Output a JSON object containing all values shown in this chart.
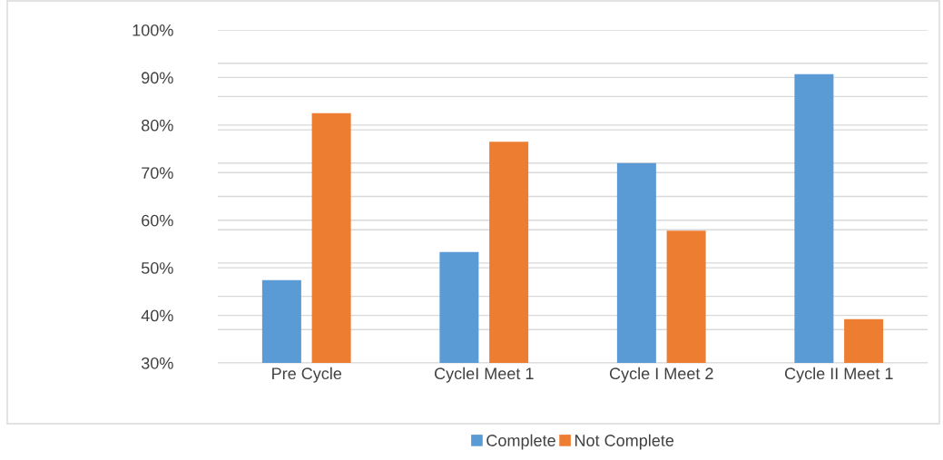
{
  "chart_data": {
    "type": "bar",
    "categories": [
      "Pre Cycle",
      "CycleI Meet 1",
      "Cycle I Meet 2",
      "Cycle II Meet 1"
    ],
    "series": [
      {
        "name": "Complete",
        "color": "#5b9bd5",
        "values": [
          47.4,
          53.3,
          72.0,
          90.7
        ]
      },
      {
        "name": "Not Complete",
        "color": "#ed7d31",
        "values": [
          82.5,
          76.5,
          57.8,
          39.2
        ]
      }
    ],
    "ylim": [
      30,
      100
    ],
    "yticks": [
      {
        "value": 30,
        "label": "30%"
      },
      {
        "value": 40,
        "label": "40%"
      },
      {
        "value": 50,
        "label": "50%"
      },
      {
        "value": 60,
        "label": "60%"
      },
      {
        "value": 70,
        "label": "70%"
      },
      {
        "value": 80,
        "label": "80%"
      },
      {
        "value": 90,
        "label": "90%"
      },
      {
        "value": 100,
        "label": "100%"
      },
      {
        "value": 37,
        "label": null
      },
      {
        "value": 44,
        "label": null
      },
      {
        "value": 51,
        "label": null
      },
      {
        "value": 58,
        "label": null
      },
      {
        "value": 65,
        "label": null
      },
      {
        "value": 72,
        "label": null
      },
      {
        "value": 79,
        "label": null
      },
      {
        "value": 86,
        "label": null
      },
      {
        "value": 93,
        "label": null
      }
    ],
    "grid": "y",
    "legend": "bottom"
  }
}
